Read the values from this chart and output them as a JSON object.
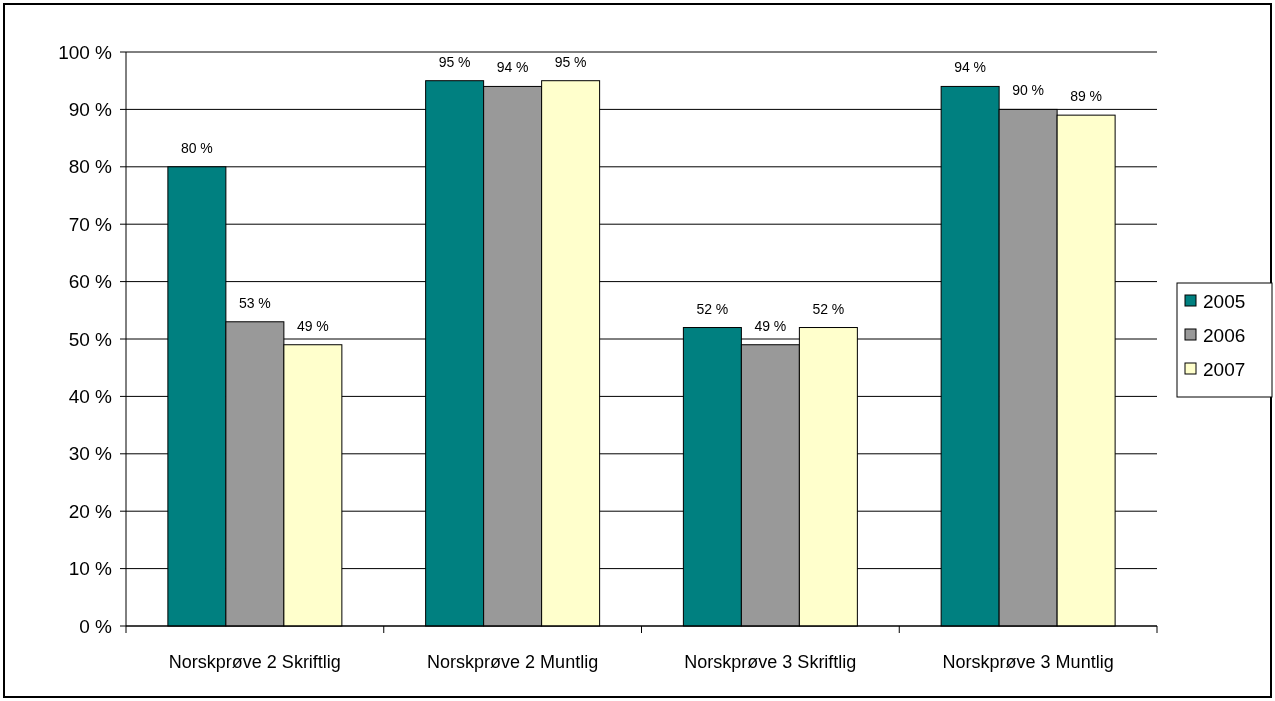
{
  "chart_data": {
    "type": "bar",
    "categories": [
      "Norskprøve 2 Skriftlig",
      "Norskprøve 2 Muntlig",
      "Norskprøve 3 Skriftlig",
      "Norskprøve 3 Muntlig"
    ],
    "series": [
      {
        "name": "2005",
        "color": "#008080",
        "values": [
          80,
          95,
          52,
          94
        ],
        "value_labels": [
          "80 %",
          "95 %",
          "52 %",
          "94 %"
        ]
      },
      {
        "name": "2006",
        "color": "#999999",
        "values": [
          53,
          94,
          49,
          90
        ],
        "value_labels": [
          "53 %",
          "94 %",
          "49 %",
          "90 %"
        ]
      },
      {
        "name": "2007",
        "color": "#ffffcc",
        "values": [
          49,
          95,
          52,
          89
        ],
        "value_labels": [
          "49 %",
          "95 %",
          "52 %",
          "89 %"
        ]
      }
    ],
    "ylim": [
      0,
      100
    ],
    "yticks": [
      {
        "value": 0,
        "label": "0 %"
      },
      {
        "value": 10,
        "label": "10 %"
      },
      {
        "value": 20,
        "label": "20 %"
      },
      {
        "value": 30,
        "label": "30 %"
      },
      {
        "value": 40,
        "label": "40 %"
      },
      {
        "value": 50,
        "label": "50 %"
      },
      {
        "value": 60,
        "label": "60 %"
      },
      {
        "value": 70,
        "label": "70 %"
      },
      {
        "value": 80,
        "label": "80 %"
      },
      {
        "value": 90,
        "label": "90 %"
      },
      {
        "value": 100,
        "label": "100 %"
      }
    ],
    "grid": "y",
    "legend": "right"
  }
}
